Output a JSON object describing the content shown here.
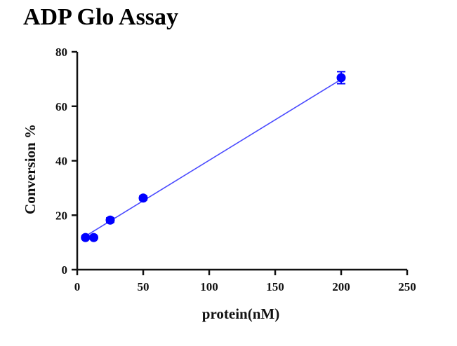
{
  "chart_data": {
    "type": "scatter",
    "title": "ADP Glo Assay",
    "xlabel": "protein(nM)",
    "ylabel": "Conversion %",
    "xlim": [
      0,
      250
    ],
    "ylim": [
      0,
      80
    ],
    "x_ticks": [
      "0",
      "50",
      "100",
      "150",
      "200",
      "250"
    ],
    "y_ticks": [
      "0",
      "20",
      "40",
      "60",
      "80"
    ],
    "grid": false,
    "legend": "none",
    "series": [
      {
        "x": [
          6.25,
          12.5,
          25,
          50,
          200
        ],
        "y": [
          11.8,
          11.8,
          18.2,
          26.3,
          70.5
        ],
        "error": [
          0.6,
          0.5,
          0.8,
          0.7,
          2.2
        ],
        "color": "#0000ff",
        "fit_line": {
          "x_start": 6.25,
          "x_end": 200,
          "y_start": 12.3,
          "y_end": 69.9,
          "color": "#4a4aff"
        }
      }
    ]
  }
}
